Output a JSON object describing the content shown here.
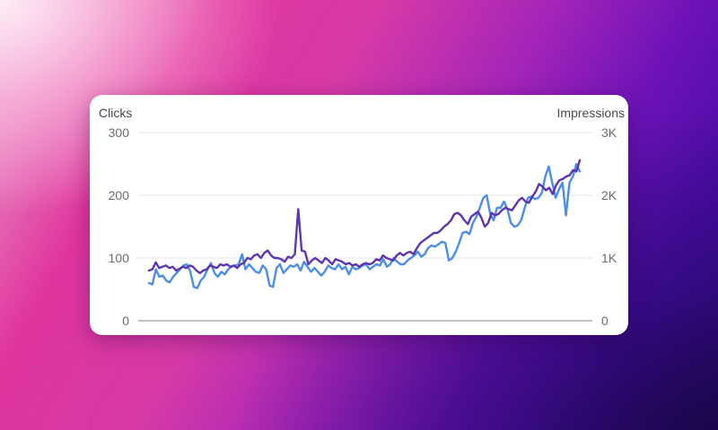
{
  "chart_data": {
    "type": "line",
    "y_left_label": "Clicks",
    "y_right_label": "Impressions",
    "y_left_ticks": [
      "300",
      "200",
      "100",
      "0"
    ],
    "y_right_ticks": [
      "3K",
      "2K",
      "1K",
      "0"
    ],
    "y_left_range": [
      0,
      300
    ],
    "y_right_range": [
      0,
      3000
    ],
    "grid": true,
    "legend": "none",
    "series": [
      {
        "axis": "left",
        "color": "#5e35b1",
        "values": [
          80,
          82,
          93,
          84,
          86,
          88,
          84,
          86,
          80,
          83,
          86,
          84,
          88,
          86,
          80,
          76,
          80,
          82,
          88,
          86,
          84,
          90,
          88,
          90,
          86,
          88,
          84,
          90,
          92,
          100,
          98,
          104,
          106,
          100,
          108,
          112,
          104,
          100,
          100,
          98,
          94,
          102,
          100,
          106,
          178,
          112,
          110,
          90,
          96,
          100,
          96,
          92,
          100,
          96,
          90,
          98,
          96,
          94,
          90,
          92,
          88,
          90,
          86,
          90,
          92,
          90,
          92,
          98,
          96,
          104,
          100,
          98,
          96,
          104,
          108,
          104,
          108,
          110,
          106,
          116,
          124,
          128,
          132,
          136,
          140,
          140,
          144,
          150,
          154,
          160,
          170,
          172,
          168,
          160,
          154,
          166,
          170,
          174,
          164,
          150,
          156,
          172,
          168,
          170,
          176,
          180,
          178,
          176,
          184,
          192,
          196,
          190,
          188,
          198,
          206,
          218,
          214,
          208,
          212,
          202,
          216,
          224,
          226,
          230,
          232,
          240,
          238,
          256
        ]
      },
      {
        "axis": "right",
        "color": "#4a8ee8",
        "values": [
          600,
          580,
          820,
          700,
          720,
          640,
          610,
          700,
          760,
          820,
          880,
          900,
          780,
          540,
          520,
          640,
          700,
          820,
          920,
          760,
          700,
          780,
          740,
          820,
          860,
          880,
          900,
          1060,
          820,
          900,
          840,
          780,
          760,
          880,
          820,
          560,
          540,
          840,
          900,
          760,
          820,
          880,
          860,
          900,
          800,
          940,
          860,
          780,
          840,
          780,
          720,
          780,
          880,
          840,
          820,
          900,
          820,
          860,
          740,
          860,
          820,
          840,
          880,
          900,
          820,
          860,
          900,
          880,
          980,
          860,
          900,
          1000,
          940,
          900,
          900,
          960,
          1000,
          1040,
          1100,
          1020,
          1060,
          1160,
          1200,
          1180,
          1220,
          1260,
          1240,
          960,
          1000,
          1100,
          1240,
          1400,
          1420,
          1380,
          1560,
          1660,
          1800,
          1960,
          2000,
          1700,
          1600,
          1800,
          1800,
          1900,
          1780,
          1560,
          1500,
          1520,
          1600,
          1800,
          1960,
          1980,
          1940,
          1960,
          2040,
          2300,
          2460,
          2200,
          1960,
          2100,
          2200,
          1680,
          2200,
          2300,
          2500,
          2380
        ]
      }
    ]
  }
}
